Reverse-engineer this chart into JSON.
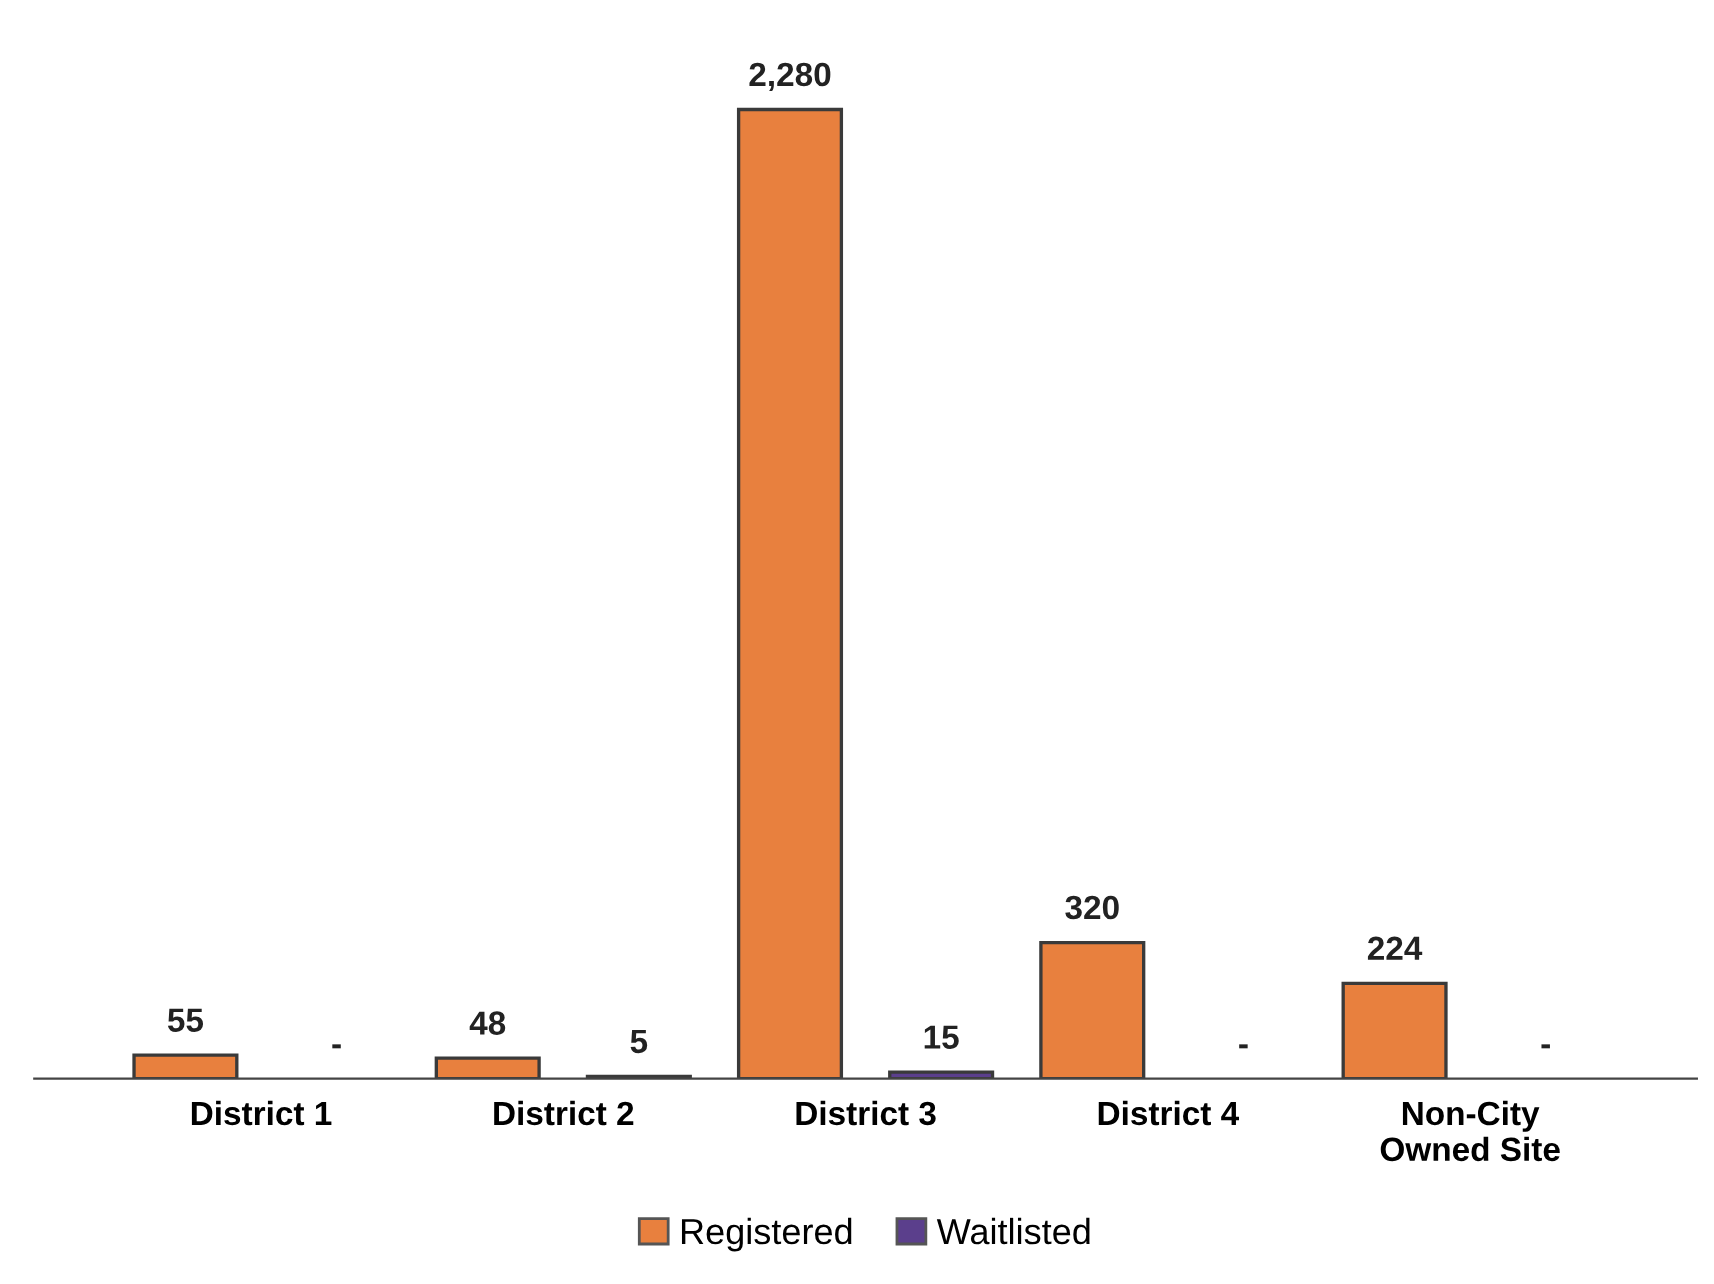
{
  "chart_data": {
    "type": "bar",
    "categories": [
      "District 1",
      "District 2",
      "District 3",
      "District 4",
      "Non-City\nOwned Site"
    ],
    "series": [
      {
        "name": "Registered",
        "color": "#e8803e",
        "values": [
          55,
          48,
          2280,
          320,
          224
        ],
        "value_labels": [
          "55",
          "48",
          "2,280",
          "320",
          "224"
        ]
      },
      {
        "name": "Waitlisted",
        "color": "#5b3f8c",
        "values": [
          null,
          5,
          15,
          null,
          null
        ],
        "value_labels": [
          "-",
          "5",
          "15",
          "-",
          "-"
        ]
      }
    ],
    "legend": "bottom",
    "grid": false
  }
}
